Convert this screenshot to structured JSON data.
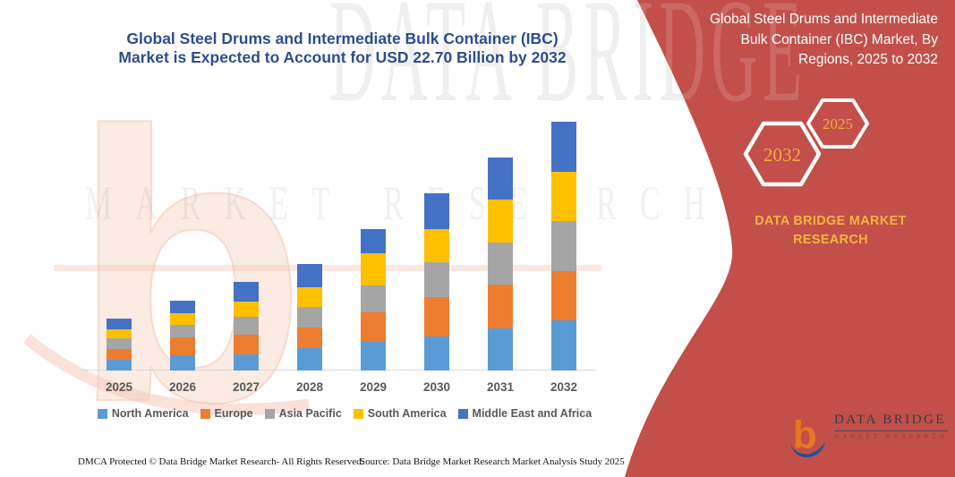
{
  "header": {
    "left_title_lines": [
      "Global Steel Drums and Intermediate Bulk Container (IBC)",
      "Market is Expected to Account for USD 22.70 Billion by 2032"
    ],
    "left_title_color": "#2E4D8E"
  },
  "panel": {
    "bg_color": "#C24F4A",
    "title_lines": [
      "Global Steel Drums and Intermediate",
      "Bulk Container (IBC) Market, By",
      "Regions, 2025 to 2032"
    ],
    "hexagons": [
      {
        "label": "2032"
      },
      {
        "label": "2025"
      }
    ],
    "hexagon_text_color": "#F0AC3F",
    "brand_lines": [
      "DATA BRIDGE MARKET",
      "RESEARCH"
    ],
    "brand_color": "#F2B441"
  },
  "watermark": {
    "big_text": "DATA BRIDGE",
    "sub_text": "MARKET RESEARCH"
  },
  "chart_data": {
    "type": "bar",
    "stacked": true,
    "title": "Global Steel Drums and Intermediate Bulk Container (IBC) Market, By Regions, 2025 to 2032",
    "unit": "USD Billion",
    "stated_total_2032": 22.7,
    "categories": [
      "2025",
      "2026",
      "2027",
      "2028",
      "2029",
      "2030",
      "2031",
      "2032"
    ],
    "series": [
      {
        "name": "North America",
        "color": "#5B9BD5",
        "values": [
          0.95,
          1.36,
          1.49,
          2.04,
          2.59,
          3.1,
          3.87,
          4.54
        ]
      },
      {
        "name": "Europe",
        "color": "#ED7D31",
        "values": [
          1.0,
          1.63,
          1.77,
          1.88,
          2.69,
          3.62,
          3.95,
          4.54
        ]
      },
      {
        "name": "Asia Pacific",
        "color": "#A5A5A5",
        "values": [
          0.98,
          1.14,
          1.63,
          1.88,
          2.48,
          3.13,
          3.89,
          4.54
        ]
      },
      {
        "name": "South America",
        "color": "#FFC000",
        "values": [
          0.87,
          1.12,
          1.41,
          1.8,
          2.91,
          3.08,
          3.87,
          4.54
        ]
      },
      {
        "name": "Middle East and Africa",
        "color": "#4472C4",
        "values": [
          0.95,
          1.14,
          1.77,
          2.1,
          2.26,
          3.24,
          3.87,
          4.54
        ]
      }
    ],
    "year_totals_estimated": [
      4.75,
      6.39,
      8.07,
      9.7,
      12.93,
      16.17,
      19.45,
      22.7
    ],
    "legend_position": "bottom",
    "axes": "no value axis shown; baseline only",
    "grid": false
  },
  "footer": {
    "dmca": "DMCA Protected © Data Bridge Market Research-  All Rights Reserved.",
    "source": "Source: Data Bridge Market Research  Market Analysis Study 2025"
  },
  "logo": {
    "name": "DATA BRIDGE",
    "subtitle": "MARKET RESEARCH"
  }
}
